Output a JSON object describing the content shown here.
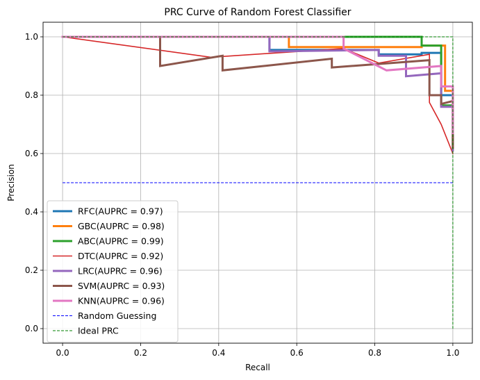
{
  "chart_data": {
    "type": "line",
    "title": "PRC Curve of Random Forest Classifier",
    "xlabel": "Recall",
    "ylabel": "Precision",
    "xlim": [
      -0.05,
      1.05
    ],
    "ylim": [
      -0.05,
      1.05
    ],
    "xticks": [
      "0.0",
      "0.2",
      "0.4",
      "0.6",
      "0.8",
      "1.0"
    ],
    "yticks": [
      "0.0",
      "0.2",
      "0.4",
      "0.6",
      "0.8",
      "1.0"
    ],
    "grid": true,
    "legend_position": "lower-left",
    "series": [
      {
        "name": "RFC(AUPRC = 0.97)",
        "color": "#1f77b4",
        "style": "solid",
        "width": "thick",
        "x": [
          0,
          0.53,
          0.53,
          0.81,
          0.81,
          0.92,
          0.92,
          0.97,
          0.97,
          1.0,
          1.0
        ],
        "y": [
          1.0,
          1.0,
          0.955,
          0.955,
          0.94,
          0.94,
          0.945,
          0.945,
          0.8,
          0.8,
          0.62
        ]
      },
      {
        "name": "GBC(AUPRC = 0.98)",
        "color": "#ff7f0e",
        "style": "solid",
        "width": "thick",
        "x": [
          0,
          0.58,
          0.58,
          0.92,
          0.92,
          0.98,
          0.98,
          1.0,
          1.0
        ],
        "y": [
          1.0,
          1.0,
          0.965,
          0.965,
          0.97,
          0.97,
          0.815,
          0.815,
          0.62
        ]
      },
      {
        "name": "ABC(AUPRC = 0.99)",
        "color": "#2ca02c",
        "style": "solid",
        "width": "thick",
        "x": [
          0,
          0.92,
          0.92,
          0.97,
          0.97,
          1.0,
          1.0
        ],
        "y": [
          1.0,
          1.0,
          0.97,
          0.97,
          0.765,
          0.765,
          0.62
        ]
      },
      {
        "name": "DTC(AUPRC = 0.92)",
        "color": "#d62728",
        "style": "solid",
        "width": "normal",
        "x": [
          0,
          0.38,
          0.72,
          0.81,
          0.94,
          0.94,
          0.97,
          1.0
        ],
        "y": [
          1.0,
          0.93,
          0.96,
          0.91,
          0.94,
          0.775,
          0.7,
          0.6
        ]
      },
      {
        "name": "LRC(AUPRC = 0.96)",
        "color": "#9467bd",
        "style": "solid",
        "width": "thick",
        "x": [
          0,
          0.53,
          0.53,
          0.81,
          0.81,
          0.88,
          0.88,
          0.97,
          0.97,
          1.0,
          1.0
        ],
        "y": [
          1.0,
          1.0,
          0.95,
          0.955,
          0.935,
          0.935,
          0.865,
          0.875,
          0.76,
          0.76,
          0.61
        ]
      },
      {
        "name": "SVM(AUPRC = 0.93)",
        "color": "#8c564b",
        "style": "solid",
        "width": "thick",
        "x": [
          0,
          0.25,
          0.25,
          0.41,
          0.41,
          0.69,
          0.69,
          0.94,
          0.94,
          0.97,
          0.97,
          1.0,
          1.0
        ],
        "y": [
          1.0,
          1.0,
          0.9,
          0.935,
          0.885,
          0.925,
          0.895,
          0.92,
          0.8,
          0.8,
          0.77,
          0.78,
          0.62
        ]
      },
      {
        "name": "KNN(AUPRC = 0.96)",
        "color": "#e377c2",
        "style": "solid",
        "width": "thick",
        "x": [
          0,
          0.72,
          0.72,
          0.83,
          0.83,
          0.97,
          0.97,
          1.0,
          1.0
        ],
        "y": [
          1.0,
          1.0,
          0.96,
          0.885,
          0.885,
          0.9,
          0.83,
          0.83,
          0.67
        ]
      },
      {
        "name": "Random Guessing",
        "color": "#0000ff",
        "style": "dashed",
        "width": "thin",
        "x": [
          0,
          1.0
        ],
        "y": [
          0.5,
          0.5
        ]
      },
      {
        "name": "Ideal PRC",
        "color": "#008000",
        "style": "dashed",
        "width": "thin",
        "x": [
          0,
          1.0,
          1.0
        ],
        "y": [
          1.0,
          1.0,
          0.0
        ]
      }
    ]
  }
}
